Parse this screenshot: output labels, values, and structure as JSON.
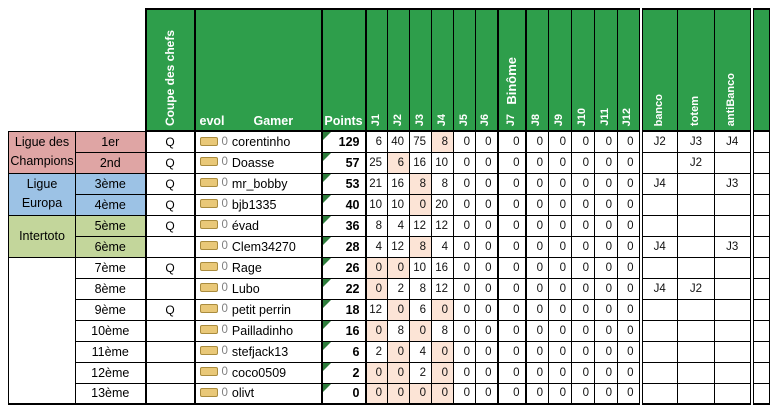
{
  "colors": {
    "header_green": "#2e9e4b",
    "highlight_peach": "#fce4d6",
    "corner_triangle_green": "#2e7d3c",
    "champions_rose": "#dfa5a4",
    "europa_blue": "#9cc2e5",
    "intertoto_green": "#c3d69b",
    "evol_icon_fill": "#e9c878",
    "evol_icon_border": "#aa8c3e",
    "evol_zero_gray": "#7f7f7f"
  },
  "header": {
    "coupe": "Coupe des chefs",
    "evol": "evol",
    "gamer": "Gamer",
    "points": "Points",
    "binome": "Binôme",
    "j_labels": [
      "J1",
      "J2",
      "J3",
      "J4",
      "J5",
      "J6",
      "J7",
      "J8",
      "J9",
      "J10",
      "J11",
      "J12"
    ],
    "banco": "banco",
    "totem": "totem",
    "antibanco": "antiBanco"
  },
  "league_groups": [
    {
      "label": "Ligue des Champions",
      "color": "#dfa5a4",
      "span": 2
    },
    {
      "label": "Ligue Europa",
      "color": "#9cc2e5",
      "span": 2
    },
    {
      "label": "Intertoto",
      "color": "#c3d69b",
      "span": 2
    },
    {
      "label": "",
      "color": "#ffffff",
      "span": 7
    }
  ],
  "rows": [
    {
      "rank": "1er",
      "q": "Q",
      "evol": "0",
      "gamer": "corentinho",
      "points": "129",
      "j": [
        6,
        40,
        75,
        8,
        0,
        0,
        0,
        0,
        0,
        0,
        0,
        0
      ],
      "hl": [
        3
      ],
      "banco": "J2",
      "totem": "J3",
      "antibanco": "J4"
    },
    {
      "rank": "2nd",
      "q": "Q",
      "evol": "0",
      "gamer": "Doasse",
      "points": "57",
      "j": [
        25,
        6,
        16,
        10,
        0,
        0,
        0,
        0,
        0,
        0,
        0,
        0
      ],
      "hl": [
        1
      ],
      "banco": "",
      "totem": "J2",
      "antibanco": ""
    },
    {
      "rank": "3ème",
      "q": "Q",
      "evol": "0",
      "gamer": "mr_bobby",
      "points": "53",
      "j": [
        21,
        16,
        8,
        8,
        0,
        0,
        0,
        0,
        0,
        0,
        0,
        0
      ],
      "hl": [
        2
      ],
      "banco": "J4",
      "totem": "",
      "antibanco": "J3"
    },
    {
      "rank": "4ème",
      "q": "Q",
      "evol": "0",
      "gamer": "bjb1335",
      "points": "40",
      "j": [
        10,
        10,
        0,
        20,
        0,
        0,
        0,
        0,
        0,
        0,
        0,
        0
      ],
      "hl": [
        2
      ],
      "banco": "",
      "totem": "",
      "antibanco": ""
    },
    {
      "rank": "5ème",
      "q": "Q",
      "evol": "0",
      "gamer": "évad",
      "points": "36",
      "j": [
        8,
        4,
        12,
        12,
        0,
        0,
        0,
        0,
        0,
        0,
        0,
        0
      ],
      "hl": [],
      "banco": "",
      "totem": "",
      "antibanco": ""
    },
    {
      "rank": "6ème",
      "q": "",
      "evol": "0",
      "gamer": "Clem34270",
      "points": "28",
      "j": [
        4,
        12,
        8,
        4,
        0,
        0,
        0,
        0,
        0,
        0,
        0,
        0
      ],
      "hl": [
        2
      ],
      "banco": "J4",
      "totem": "",
      "antibanco": "J3"
    },
    {
      "rank": "7ème",
      "q": "Q",
      "evol": "0",
      "gamer": "Rage",
      "points": "26",
      "j": [
        0,
        0,
        10,
        16,
        0,
        0,
        0,
        0,
        0,
        0,
        0,
        0
      ],
      "hl": [
        0,
        1
      ],
      "banco": "",
      "totem": "",
      "antibanco": ""
    },
    {
      "rank": "8ème",
      "q": "",
      "evol": "0",
      "gamer": "Lubo",
      "points": "22",
      "j": [
        0,
        2,
        8,
        12,
        0,
        0,
        0,
        0,
        0,
        0,
        0,
        0
      ],
      "hl": [
        0
      ],
      "banco": "J4",
      "totem": "J2",
      "antibanco": ""
    },
    {
      "rank": "9ème",
      "q": "Q",
      "evol": "0",
      "gamer": "petit perrin",
      "points": "18",
      "j": [
        12,
        0,
        6,
        0,
        0,
        0,
        0,
        0,
        0,
        0,
        0,
        0
      ],
      "hl": [
        1,
        3
      ],
      "banco": "",
      "totem": "",
      "antibanco": ""
    },
    {
      "rank": "10ème",
      "q": "",
      "evol": "0",
      "gamer": "Pailladinho",
      "points": "16",
      "j": [
        0,
        8,
        0,
        8,
        0,
        0,
        0,
        0,
        0,
        0,
        0,
        0
      ],
      "hl": [
        0,
        2
      ],
      "banco": "",
      "totem": "",
      "antibanco": ""
    },
    {
      "rank": "11ème",
      "q": "",
      "evol": "0",
      "gamer": "stefjack13",
      "points": "6",
      "j": [
        2,
        0,
        4,
        0,
        0,
        0,
        0,
        0,
        0,
        0,
        0,
        0
      ],
      "hl": [
        1,
        3
      ],
      "banco": "",
      "totem": "",
      "antibanco": ""
    },
    {
      "rank": "12ème",
      "q": "",
      "evol": "0",
      "gamer": "coco0509",
      "points": "2",
      "j": [
        0,
        0,
        2,
        0,
        0,
        0,
        0,
        0,
        0,
        0,
        0,
        0
      ],
      "hl": [
        0,
        1,
        3
      ],
      "banco": "",
      "totem": "",
      "antibanco": ""
    },
    {
      "rank": "13ème",
      "q": "",
      "evol": "0",
      "gamer": "olivt",
      "points": "0",
      "j": [
        0,
        0,
        0,
        0,
        0,
        0,
        0,
        0,
        0,
        0,
        0,
        0
      ],
      "hl": [
        0,
        1,
        2,
        3
      ],
      "banco": "",
      "totem": "",
      "antibanco": ""
    }
  ]
}
